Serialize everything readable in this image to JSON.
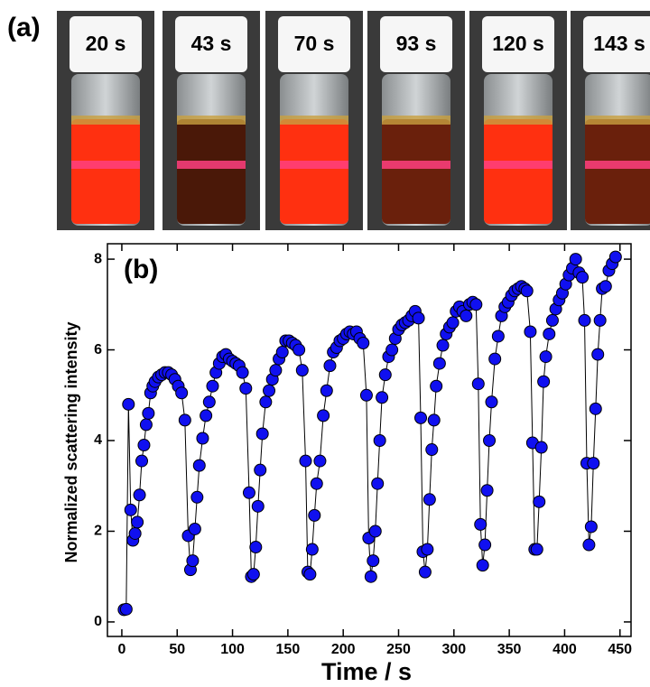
{
  "panel_a": {
    "label": "(a)",
    "vials": [
      {
        "label": "20 s",
        "color": "#ff3010"
      },
      {
        "label": "43 s",
        "color": "#4a1808"
      },
      {
        "label": "70 s",
        "color": "#ff3010"
      },
      {
        "label": "93 s",
        "color": "#6a200c"
      },
      {
        "label": "120 s",
        "color": "#ff3010"
      },
      {
        "label": "143 s",
        "color": "#6a200c"
      }
    ]
  },
  "chart_data": {
    "type": "scatter",
    "annotation": "(b)",
    "x_label": "Time / s",
    "y_label": "Normalized scattering intensity",
    "color": "#1010f0",
    "line_color": "#000000",
    "xlim": [
      -13,
      460
    ],
    "ylim": [
      -0.32,
      8.34
    ],
    "xticks": [
      0,
      50,
      100,
      150,
      200,
      250,
      300,
      350,
      400,
      450
    ],
    "yticks": [
      0,
      2,
      4,
      6,
      8
    ],
    "x": [
      2,
      4,
      6,
      8,
      10,
      12,
      14,
      16,
      18,
      20,
      22,
      24,
      26,
      28,
      30,
      33,
      36,
      39,
      42,
      45,
      48,
      51,
      54,
      57,
      60,
      62,
      64,
      66,
      68,
      70,
      73,
      76,
      79,
      82,
      85,
      88,
      91,
      94,
      97,
      100,
      103,
      106,
      109,
      112,
      115,
      117,
      119,
      121,
      123,
      125,
      127,
      130,
      133,
      136,
      139,
      142,
      145,
      148,
      151,
      154,
      157,
      160,
      163,
      166,
      168,
      170,
      172,
      174,
      176,
      179,
      182,
      185,
      188,
      191,
      194,
      197,
      200,
      203,
      206,
      209,
      212,
      215,
      218,
      221,
      223,
      225,
      227,
      229,
      231,
      233,
      235,
      238,
      241,
      244,
      247,
      250,
      253,
      256,
      259,
      262,
      265,
      268,
      270,
      272,
      274,
      276,
      278,
      280,
      282,
      284,
      287,
      290,
      293,
      296,
      299,
      302,
      305,
      308,
      311,
      314,
      317,
      320,
      322,
      324,
      326,
      328,
      330,
      332,
      334,
      337,
      340,
      343,
      346,
      349,
      352,
      355,
      358,
      361,
      364,
      366,
      369,
      371,
      373,
      375,
      377,
      379,
      381,
      383,
      386,
      389,
      392,
      395,
      398,
      401,
      404,
      407,
      410,
      413,
      416,
      418,
      420,
      422,
      424,
      426,
      428,
      430,
      432,
      434,
      437,
      440,
      443,
      446
    ],
    "values": [
      0.27,
      0.28,
      4.8,
      2.47,
      1.8,
      1.95,
      2.2,
      2.8,
      3.55,
      3.9,
      4.35,
      4.6,
      5.05,
      5.2,
      5.3,
      5.4,
      5.45,
      5.5,
      5.5,
      5.45,
      5.35,
      5.2,
      5.05,
      4.45,
      1.9,
      1.15,
      1.35,
      2.05,
      2.75,
      3.45,
      4.05,
      4.55,
      4.85,
      5.2,
      5.5,
      5.7,
      5.85,
      5.9,
      5.8,
      5.75,
      5.7,
      5.65,
      5.5,
      5.15,
      2.85,
      1.0,
      1.05,
      1.65,
      2.55,
      3.35,
      4.15,
      4.85,
      5.1,
      5.35,
      5.55,
      5.8,
      5.95,
      6.2,
      6.2,
      6.15,
      6.1,
      6.0,
      5.55,
      3.55,
      1.1,
      1.05,
      1.6,
      2.35,
      3.05,
      3.55,
      4.55,
      5.1,
      5.65,
      5.95,
      6.05,
      6.2,
      6.25,
      6.35,
      6.4,
      6.35,
      6.4,
      6.25,
      6.15,
      5.0,
      1.85,
      1.0,
      1.35,
      2.0,
      3.05,
      4.0,
      4.95,
      5.45,
      5.85,
      6.0,
      6.25,
      6.45,
      6.55,
      6.6,
      6.65,
      6.75,
      6.85,
      6.7,
      4.5,
      1.55,
      1.1,
      1.6,
      2.7,
      3.8,
      4.45,
      5.2,
      5.7,
      6.1,
      6.35,
      6.5,
      6.6,
      6.85,
      6.95,
      6.85,
      6.75,
      7.0,
      7.05,
      7.0,
      5.25,
      2.15,
      1.25,
      1.7,
      2.9,
      4.0,
      4.85,
      5.8,
      6.3,
      6.75,
      6.95,
      7.05,
      7.2,
      7.3,
      7.35,
      7.4,
      7.35,
      7.3,
      6.4,
      3.95,
      1.6,
      1.6,
      2.65,
      3.85,
      5.3,
      5.85,
      6.35,
      6.65,
      6.9,
      7.1,
      7.25,
      7.45,
      7.65,
      7.8,
      8.0,
      7.7,
      7.6,
      6.65,
      3.5,
      1.7,
      2.1,
      3.5,
      4.7,
      5.9,
      6.65,
      7.35,
      7.4,
      7.75,
      7.9,
      8.05
    ]
  }
}
